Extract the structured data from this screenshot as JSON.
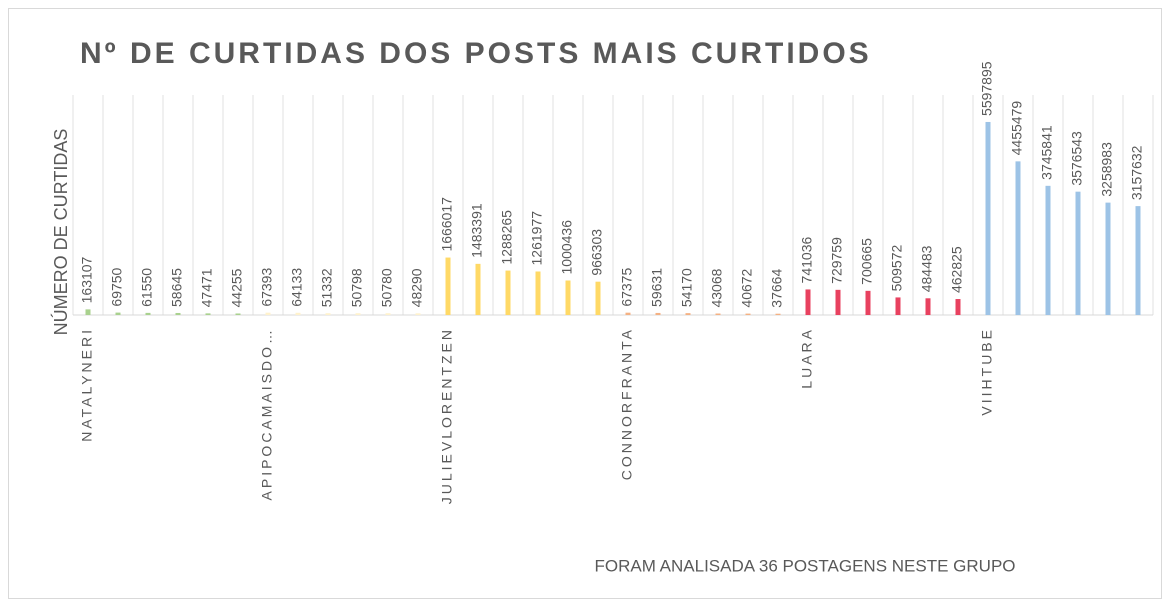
{
  "chart_data": {
    "type": "bar",
    "title": "Nº DE CURTIDAS DOS POSTS MAIS CURTIDOS",
    "y_label": "NÚMERO DE CURTIDAS",
    "note": "FORAM ANALISADA 36 POSTAGENS NESTE GRUPO",
    "categories": [
      "NATALYNERI",
      null,
      null,
      null,
      null,
      null,
      "APIPOCAMAISDO…",
      null,
      null,
      null,
      null,
      null,
      "JULIEVLORENTZEN",
      null,
      null,
      null,
      null,
      null,
      "CONNORFRANTA",
      null,
      null,
      null,
      null,
      null,
      "LUARA",
      null,
      null,
      null,
      null,
      null,
      "VIIHTUBE",
      null,
      null,
      null,
      null,
      null
    ],
    "values": [
      163107,
      69750,
      61550,
      58645,
      47471,
      44255,
      67393,
      64133,
      51332,
      50798,
      50780,
      48290,
      1666017,
      1483391,
      1288265,
      1261977,
      1000436,
      966303,
      67375,
      59631,
      54170,
      43068,
      40672,
      37664,
      741036,
      729759,
      700665,
      509572,
      484483,
      462825,
      5597895,
      4455479,
      3745841,
      3576543,
      3258983,
      3157632
    ],
    "colors": [
      "#a9d18e",
      "#a9d18e",
      "#a9d18e",
      "#a9d18e",
      "#a9d18e",
      "#a9d18e",
      "#fff2cc",
      "#fff2cc",
      "#fff2cc",
      "#fff2cc",
      "#fff2cc",
      "#fff2cc",
      "#ffd966",
      "#ffd966",
      "#ffd966",
      "#ffd966",
      "#ffd966",
      "#ffd966",
      "#f4b183",
      "#f4b183",
      "#f4b183",
      "#f4b183",
      "#f4b183",
      "#f4b183",
      "#e8415f",
      "#e8415f",
      "#e8415f",
      "#e8415f",
      "#e8415f",
      "#e8415f",
      "#9dc3e6",
      "#9dc3e6",
      "#9dc3e6",
      "#9dc3e6",
      "#9dc3e6",
      "#9dc3e6"
    ],
    "ylim": [
      0,
      5800000
    ]
  }
}
